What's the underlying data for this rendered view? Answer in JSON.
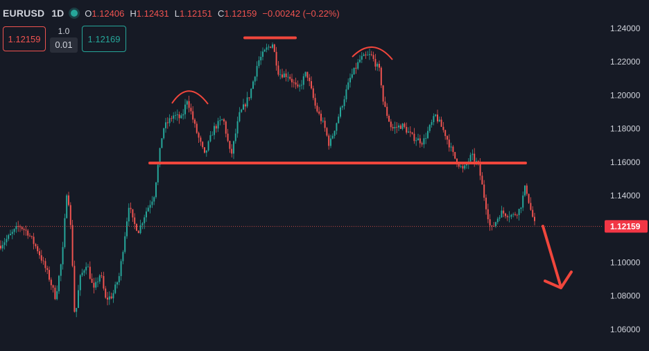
{
  "header": {
    "symbol": "EURUSD",
    "timeframe": "1D",
    "ohlc": [
      {
        "k": "O",
        "v": "1.12406"
      },
      {
        "k": "H",
        "v": "1.12431"
      },
      {
        "k": "L",
        "v": "1.12151"
      },
      {
        "k": "C",
        "v": "1.12159"
      }
    ],
    "change": "−0.00242 (−0.22%)"
  },
  "order_panel": {
    "sell_price": "1.12159",
    "buy_price": "1.12169",
    "qty": "1.0",
    "spread": "0.01"
  },
  "colors": {
    "background": "#161A25",
    "up": "#26A69A",
    "down": "#EF5350",
    "annotation": "#F0463C",
    "axis_text": "#D1D4DC",
    "price_tag_bg": "#F23645"
  },
  "chart_data": {
    "type": "candlestick",
    "title": "",
    "xlabel": "",
    "ylabel": "",
    "ylim": [
      1.05,
      1.25
    ],
    "y_ticks": [
      "1.24000",
      "1.22000",
      "1.20000",
      "1.18000",
      "1.16000",
      "1.14000",
      "1.12000",
      "1.10000",
      "1.08000",
      "1.06000"
    ],
    "y_tick_values": [
      1.24,
      1.22,
      1.2,
      1.18,
      1.16,
      1.14,
      1.12,
      1.1,
      1.08,
      1.06
    ],
    "last_price": 1.12159,
    "last_price_label": "1.12159",
    "grid": false,
    "price_path": [
      [
        0,
        1.11
      ],
      [
        12,
        1.115
      ],
      [
        28,
        1.122
      ],
      [
        40,
        1.118
      ],
      [
        55,
        1.107
      ],
      [
        70,
        1.092
      ],
      [
        80,
        1.079
      ],
      [
        90,
        1.104
      ],
      [
        97,
        1.147
      ],
      [
        103,
        1.115
      ],
      [
        108,
        1.065
      ],
      [
        115,
        1.09
      ],
      [
        125,
        1.1
      ],
      [
        135,
        1.083
      ],
      [
        145,
        1.094
      ],
      [
        152,
        1.078
      ],
      [
        162,
        1.08
      ],
      [
        172,
        1.092
      ],
      [
        178,
        1.11
      ],
      [
        186,
        1.135
      ],
      [
        192,
        1.124
      ],
      [
        200,
        1.119
      ],
      [
        210,
        1.13
      ],
      [
        222,
        1.14
      ],
      [
        235,
        1.18
      ],
      [
        250,
        1.188
      ],
      [
        262,
        1.186
      ],
      [
        270,
        1.198
      ],
      [
        282,
        1.18
      ],
      [
        295,
        1.164
      ],
      [
        308,
        1.18
      ],
      [
        322,
        1.186
      ],
      [
        333,
        1.163
      ],
      [
        345,
        1.188
      ],
      [
        360,
        1.2
      ],
      [
        372,
        1.22
      ],
      [
        385,
        1.228
      ],
      [
        393,
        1.231
      ],
      [
        402,
        1.213
      ],
      [
        416,
        1.212
      ],
      [
        430,
        1.203
      ],
      [
        442,
        1.214
      ],
      [
        455,
        1.193
      ],
      [
        468,
        1.181
      ],
      [
        475,
        1.17
      ],
      [
        490,
        1.19
      ],
      [
        505,
        1.21
      ],
      [
        520,
        1.222
      ],
      [
        535,
        1.224
      ],
      [
        548,
        1.214
      ],
      [
        553,
        1.195
      ],
      [
        565,
        1.18
      ],
      [
        580,
        1.182
      ],
      [
        595,
        1.175
      ],
      [
        610,
        1.172
      ],
      [
        628,
        1.188
      ],
      [
        642,
        1.177
      ],
      [
        655,
        1.163
      ],
      [
        668,
        1.155
      ],
      [
        680,
        1.164
      ],
      [
        690,
        1.158
      ],
      [
        698,
        1.14
      ],
      [
        708,
        1.119
      ],
      [
        722,
        1.13
      ],
      [
        740,
        1.128
      ],
      [
        750,
        1.132
      ],
      [
        758,
        1.146
      ],
      [
        765,
        1.132
      ],
      [
        772,
        1.1216
      ]
    ]
  }
}
